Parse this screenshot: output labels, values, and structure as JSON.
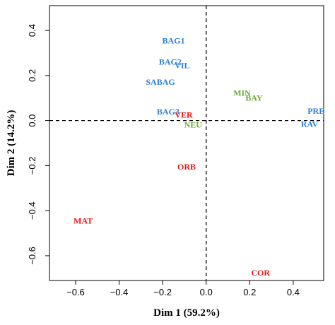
{
  "chart_data": {
    "type": "scatter",
    "title": "",
    "xlabel": "Dim 1 (59.2%)",
    "ylabel": "Dim 2 (14.2%)",
    "xlim": [
      -0.72,
      0.54
    ],
    "ylim": [
      -0.71,
      0.51
    ],
    "x_ticks": [
      -0.6,
      -0.4,
      -0.2,
      0.0,
      0.2,
      0.4
    ],
    "x_tick_labels": [
      "−0.6",
      "−0.4",
      "−0.2",
      "0.0",
      "0.2",
      "0.4"
    ],
    "y_ticks": [
      -0.6,
      -0.4,
      -0.2,
      0.0,
      0.2,
      0.4
    ],
    "y_tick_labels": [
      "−0.6",
      "−0.4",
      "−0.2",
      "0.0",
      "0.2",
      "0.4"
    ],
    "reference_lines": {
      "x": 0,
      "y": 0,
      "style": "dashed"
    },
    "grid": false,
    "points": [
      {
        "label": "BAG1",
        "x": -0.15,
        "y": 0.355,
        "color": "#2a7fd4"
      },
      {
        "label": "BAG2",
        "x": -0.165,
        "y": 0.26,
        "color": "#2a7fd4"
      },
      {
        "label": "VIL",
        "x": -0.11,
        "y": 0.245,
        "color": "#2a7fd4"
      },
      {
        "label": "SABAG",
        "x": -0.21,
        "y": 0.172,
        "color": "#2a7fd4"
      },
      {
        "label": "BAG3",
        "x": -0.175,
        "y": 0.04,
        "color": "#2a7fd4"
      },
      {
        "label": "VER",
        "x": -0.103,
        "y": 0.026,
        "color": "#e01a1a"
      },
      {
        "label": "NEU",
        "x": -0.06,
        "y": -0.018,
        "color": "#6aaa3a"
      },
      {
        "label": "MIN",
        "x": 0.165,
        "y": 0.122,
        "color": "#6aaa3a"
      },
      {
        "label": "BAY",
        "x": 0.22,
        "y": 0.101,
        "color": "#6aaa3a"
      },
      {
        "label": "PRE",
        "x": 0.505,
        "y": 0.042,
        "color": "#2a7fd4"
      },
      {
        "label": "RAV",
        "x": 0.475,
        "y": -0.015,
        "color": "#2a7fd4"
      },
      {
        "label": "ORB",
        "x": -0.09,
        "y": -0.205,
        "color": "#e01a1a"
      },
      {
        "label": "MAT",
        "x": -0.565,
        "y": -0.445,
        "color": "#e01a1a"
      },
      {
        "label": "COR",
        "x": 0.25,
        "y": -0.675,
        "color": "#e01a1a"
      }
    ]
  }
}
